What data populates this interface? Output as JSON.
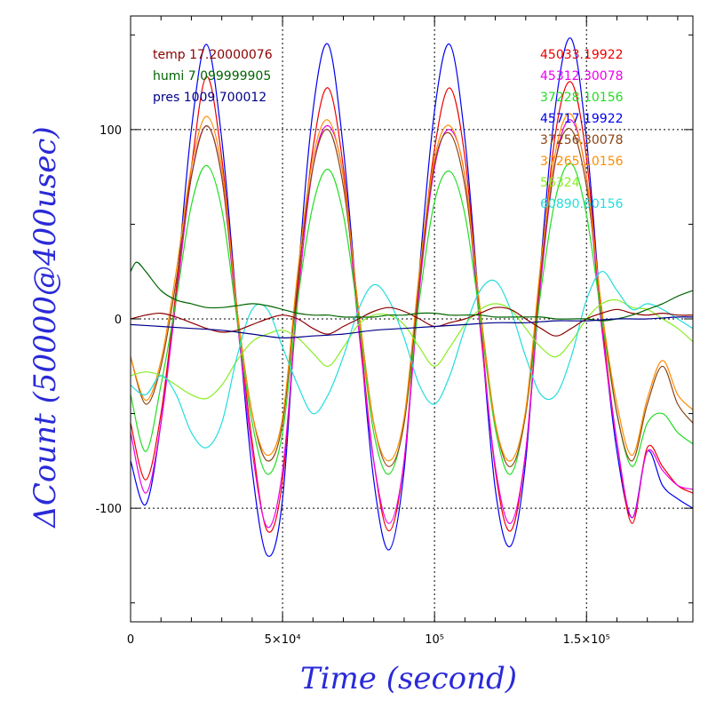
{
  "chart_data": {
    "type": "line",
    "xlabel": "Time (second)",
    "ylabel": "ΔCount (50000@400usec)",
    "xlim": [
      0,
      185000
    ],
    "ylim": [
      -160,
      160
    ],
    "grid": true,
    "xticks": [
      {
        "value": 0,
        "label": "0"
      },
      {
        "value": 50000,
        "label": "5×10⁴"
      },
      {
        "value": 100000,
        "label": "10⁵"
      },
      {
        "value": 150000,
        "label": "1.5×10⁵"
      }
    ],
    "yticks": [
      {
        "value": -100,
        "label": "-100"
      },
      {
        "value": 0,
        "label": "0"
      },
      {
        "value": 100,
        "label": "100"
      }
    ],
    "legend_left": [
      {
        "text": "temp 17.20000076",
        "color": "#8b0000"
      },
      {
        "text": "humi 7.099999905",
        "color": "#006400"
      },
      {
        "text": "pres 1009.700012",
        "color": "#00008b"
      }
    ],
    "legend_right": [
      {
        "text": "45033.19922",
        "color": "#ee0000"
      },
      {
        "text": "45312.30078",
        "color": "#ee00ee"
      },
      {
        "text": "37228.10156",
        "color": "#22dd22"
      },
      {
        "text": "45717.19922",
        "color": "#0000ee"
      },
      {
        "text": "37256.30078",
        "color": "#8b4513"
      },
      {
        "text": "37265.10156",
        "color": "#ff8c00"
      },
      {
        "text": "56324",
        "color": "#88ee22"
      },
      {
        "text": "60890.60156",
        "color": "#22dddd"
      }
    ],
    "series": [
      {
        "name": "45717.19922",
        "color": "#0000ee",
        "x": [
          0,
          5000,
          10000,
          15000,
          20000,
          25000,
          30000,
          35000,
          40000,
          45000,
          50000,
          55000,
          60000,
          65000,
          70000,
          75000,
          80000,
          85000,
          90000,
          95000,
          100000,
          105000,
          110000,
          115000,
          120000,
          125000,
          130000,
          135000,
          140000,
          145000,
          150000,
          155000,
          160000,
          165000,
          170000,
          175000,
          180000,
          185000
        ],
        "y": [
          -75,
          -98,
          -55,
          15,
          100,
          145,
          95,
          5,
          -80,
          -125,
          -95,
          20,
          110,
          145,
          90,
          0,
          -85,
          -122,
          -80,
          25,
          110,
          145,
          95,
          0,
          -90,
          -120,
          -75,
          30,
          115,
          148,
          95,
          0,
          -70,
          -105,
          -70,
          -88,
          -95,
          -100
        ]
      },
      {
        "name": "45033.19922",
        "color": "#ee0000",
        "x": [
          0,
          5000,
          10000,
          15000,
          20000,
          25000,
          30000,
          35000,
          40000,
          45000,
          50000,
          55000,
          60000,
          65000,
          70000,
          75000,
          80000,
          85000,
          90000,
          95000,
          100000,
          105000,
          110000,
          115000,
          120000,
          125000,
          130000,
          135000,
          140000,
          145000,
          150000,
          155000,
          160000,
          165000,
          170000,
          175000,
          180000,
          185000
        ],
        "y": [
          -55,
          -85,
          -50,
          15,
          80,
          128,
          85,
          5,
          -65,
          -112,
          -85,
          15,
          90,
          122,
          80,
          0,
          -75,
          -112,
          -75,
          20,
          90,
          122,
          85,
          0,
          -80,
          -112,
          -70,
          25,
          100,
          125,
          85,
          0,
          -65,
          -108,
          -68,
          -78,
          -88,
          -92
        ]
      },
      {
        "name": "45312.30078",
        "color": "#ee00ee",
        "x": [
          0,
          5000,
          10000,
          15000,
          20000,
          25000,
          30000,
          35000,
          40000,
          45000,
          50000,
          55000,
          60000,
          65000,
          70000,
          75000,
          80000,
          85000,
          90000,
          95000,
          100000,
          105000,
          110000,
          115000,
          120000,
          125000,
          130000,
          135000,
          140000,
          145000,
          150000,
          155000,
          160000,
          165000,
          170000,
          175000,
          180000,
          185000
        ],
        "y": [
          -60,
          -92,
          -55,
          10,
          75,
          102,
          75,
          0,
          -70,
          -110,
          -80,
          10,
          80,
          102,
          75,
          -5,
          -75,
          -108,
          -75,
          15,
          80,
          100,
          75,
          -5,
          -78,
          -108,
          -70,
          20,
          85,
          105,
          75,
          -5,
          -65,
          -105,
          -70,
          -80,
          -88,
          -90
        ]
      },
      {
        "name": "37228.10156",
        "color": "#22dd22",
        "x": [
          0,
          5000,
          10000,
          15000,
          20000,
          25000,
          30000,
          35000,
          40000,
          45000,
          50000,
          55000,
          60000,
          65000,
          70000,
          75000,
          80000,
          85000,
          90000,
          95000,
          100000,
          105000,
          110000,
          115000,
          120000,
          125000,
          130000,
          135000,
          140000,
          145000,
          150000,
          155000,
          160000,
          165000,
          170000,
          175000,
          180000,
          185000
        ],
        "y": [
          -40,
          -70,
          -35,
          10,
          60,
          81,
          58,
          0,
          -55,
          -82,
          -60,
          10,
          60,
          79,
          55,
          0,
          -60,
          -82,
          -55,
          10,
          62,
          78,
          55,
          0,
          -58,
          -82,
          -50,
          15,
          65,
          82,
          55,
          0,
          -50,
          -78,
          -55,
          -50,
          -60,
          -66
        ]
      },
      {
        "name": "37256.30078",
        "color": "#8b4513",
        "x": [
          0,
          5000,
          10000,
          15000,
          20000,
          25000,
          30000,
          35000,
          40000,
          45000,
          50000,
          55000,
          60000,
          65000,
          70000,
          75000,
          80000,
          85000,
          90000,
          95000,
          100000,
          105000,
          110000,
          115000,
          120000,
          125000,
          130000,
          135000,
          140000,
          145000,
          150000,
          155000,
          160000,
          165000,
          170000,
          175000,
          180000,
          185000
        ],
        "y": [
          -20,
          -45,
          -25,
          20,
          75,
          102,
          75,
          5,
          -50,
          -75,
          -55,
          20,
          80,
          100,
          70,
          5,
          -55,
          -78,
          -55,
          20,
          82,
          98,
          70,
          5,
          -55,
          -78,
          -50,
          25,
          85,
          100,
          70,
          5,
          -50,
          -75,
          -45,
          -25,
          -45,
          -55
        ]
      },
      {
        "name": "37265.10156",
        "color": "#ff8c00",
        "x": [
          0,
          5000,
          10000,
          15000,
          20000,
          25000,
          30000,
          35000,
          40000,
          45000,
          50000,
          55000,
          60000,
          65000,
          70000,
          75000,
          80000,
          85000,
          90000,
          95000,
          100000,
          105000,
          110000,
          115000,
          120000,
          125000,
          130000,
          135000,
          140000,
          145000,
          150000,
          155000,
          160000,
          165000,
          170000,
          175000,
          180000,
          185000
        ],
        "y": [
          -20,
          -43,
          -22,
          25,
          80,
          107,
          80,
          5,
          -50,
          -72,
          -52,
          25,
          85,
          105,
          75,
          5,
          -55,
          -75,
          -52,
          25,
          85,
          102,
          75,
          5,
          -55,
          -75,
          -48,
          30,
          90,
          108,
          75,
          5,
          -45,
          -72,
          -42,
          -22,
          -40,
          -48
        ]
      },
      {
        "name": "56324",
        "color": "#88ee22",
        "x": [
          0,
          5000,
          10000,
          15000,
          20000,
          25000,
          30000,
          35000,
          40000,
          45000,
          50000,
          55000,
          60000,
          65000,
          70000,
          75000,
          80000,
          85000,
          90000,
          95000,
          100000,
          105000,
          110000,
          115000,
          120000,
          125000,
          130000,
          135000,
          140000,
          145000,
          150000,
          155000,
          160000,
          165000,
          170000,
          175000,
          180000,
          185000
        ],
        "y": [
          -30,
          -28,
          -30,
          -35,
          -40,
          -42,
          -35,
          -22,
          -12,
          -8,
          -6,
          -10,
          -18,
          -25,
          -15,
          -3,
          2,
          2,
          -3,
          -15,
          -25,
          -15,
          -3,
          5,
          8,
          5,
          -5,
          -15,
          -20,
          -12,
          0,
          8,
          10,
          6,
          5,
          0,
          -5,
          -12
        ]
      },
      {
        "name": "60890.60156",
        "color": "#22dddd",
        "x": [
          0,
          5000,
          10000,
          15000,
          20000,
          25000,
          30000,
          35000,
          40000,
          45000,
          50000,
          55000,
          60000,
          65000,
          70000,
          75000,
          80000,
          85000,
          90000,
          95000,
          100000,
          105000,
          110000,
          115000,
          120000,
          125000,
          130000,
          135000,
          140000,
          145000,
          150000,
          155000,
          160000,
          165000,
          170000,
          175000,
          180000,
          185000
        ],
        "y": [
          -35,
          -40,
          -30,
          -40,
          -60,
          -68,
          -55,
          -20,
          5,
          5,
          -15,
          -35,
          -50,
          -40,
          -20,
          5,
          18,
          10,
          -10,
          -35,
          -45,
          -30,
          -5,
          15,
          20,
          5,
          -20,
          -40,
          -40,
          -20,
          10,
          25,
          15,
          5,
          8,
          5,
          0,
          -5
        ]
      },
      {
        "name": "temp 17.20000076",
        "color": "#8b0000",
        "x": [
          0,
          5000,
          10000,
          15000,
          20000,
          25000,
          30000,
          35000,
          40000,
          45000,
          50000,
          55000,
          60000,
          65000,
          70000,
          75000,
          80000,
          85000,
          90000,
          95000,
          100000,
          105000,
          110000,
          115000,
          120000,
          125000,
          130000,
          135000,
          140000,
          145000,
          150000,
          155000,
          160000,
          165000,
          170000,
          175000,
          180000,
          185000
        ],
        "y": [
          0,
          2,
          3,
          1,
          -2,
          -5,
          -7,
          -6,
          -3,
          0,
          2,
          0,
          -5,
          -8,
          -4,
          0,
          4,
          6,
          4,
          0,
          -4,
          -2,
          0,
          3,
          6,
          5,
          0,
          -5,
          -9,
          -5,
          0,
          3,
          5,
          3,
          2,
          3,
          2,
          2
        ]
      },
      {
        "name": "humi 7.099999905",
        "color": "#006400",
        "x": [
          0,
          2000,
          5000,
          10000,
          15000,
          20000,
          25000,
          30000,
          35000,
          40000,
          45000,
          50000,
          55000,
          60000,
          65000,
          70000,
          75000,
          80000,
          85000,
          90000,
          95000,
          100000,
          105000,
          110000,
          115000,
          120000,
          125000,
          130000,
          135000,
          140000,
          145000,
          150000,
          155000,
          160000,
          165000,
          170000,
          175000,
          180000,
          185000
        ],
        "y": [
          25,
          30,
          25,
          15,
          10,
          8,
          6,
          6,
          7,
          8,
          7,
          5,
          3,
          2,
          2,
          1,
          1,
          1,
          2,
          2,
          3,
          3,
          2,
          2,
          2,
          1,
          1,
          1,
          1,
          0,
          0,
          0,
          -1,
          0,
          2,
          5,
          8,
          12,
          15
        ]
      },
      {
        "name": "pres 1009.700012",
        "color": "#00008b",
        "x": [
          0,
          10000,
          20000,
          30000,
          40000,
          50000,
          60000,
          70000,
          80000,
          90000,
          100000,
          110000,
          120000,
          130000,
          140000,
          150000,
          160000,
          170000,
          180000,
          185000
        ],
        "y": [
          -3,
          -4,
          -5,
          -6,
          -8,
          -10,
          -9,
          -8,
          -6,
          -5,
          -4,
          -3,
          -2,
          -2,
          -1,
          -1,
          0,
          0,
          1,
          1
        ]
      }
    ]
  }
}
